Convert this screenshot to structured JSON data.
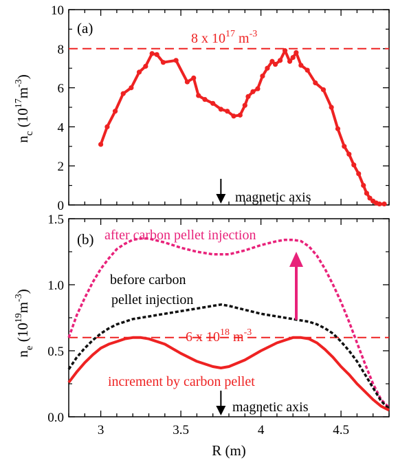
{
  "chart_data": [
    {
      "panel_label": "(a)",
      "type": "line",
      "ylabel": "n",
      "ylabel_sub": "c",
      "ylabel_unit_a": " (10",
      "ylabel_unit_exp1": "17",
      "ylabel_unit_b": "m",
      "ylabel_unit_exp2": "-3",
      "ylabel_unit_c": ")",
      "xlim": [
        2.8,
        4.8
      ],
      "ylim": [
        0,
        10
      ],
      "yticks": [
        "0",
        "2",
        "4",
        "6",
        "8",
        "10"
      ],
      "ref_line": {
        "y": 8,
        "color": "#ee2222",
        "label_main": "8 x 10",
        "label_exp1": "17",
        "label_mid": " m",
        "label_exp2": "-3"
      },
      "annotation": {
        "text": "magnetic axis",
        "x": 3.75
      },
      "series": [
        {
          "color": "#ee2222",
          "marker": "circle",
          "x": [
            3.0,
            3.04,
            3.09,
            3.14,
            3.19,
            3.24,
            3.28,
            3.32,
            3.35,
            3.39,
            3.47,
            3.54,
            3.58,
            3.61,
            3.65,
            3.7,
            3.75,
            3.79,
            3.83,
            3.87,
            3.9,
            3.92,
            3.95,
            3.98,
            4.01,
            4.04,
            4.07,
            4.09,
            4.12,
            4.15,
            4.18,
            4.2,
            4.22,
            4.25,
            4.29,
            4.34,
            4.39,
            4.44,
            4.48,
            4.52,
            4.55,
            4.58,
            4.61,
            4.64,
            4.66,
            4.68,
            4.7,
            4.72,
            4.74,
            4.77
          ],
          "y": [
            3.1,
            4.0,
            4.8,
            5.7,
            6.0,
            6.8,
            7.1,
            7.75,
            7.7,
            7.3,
            7.4,
            6.3,
            6.5,
            5.6,
            5.4,
            5.2,
            4.9,
            4.8,
            4.55,
            4.6,
            5.1,
            5.55,
            5.8,
            5.95,
            6.6,
            7.0,
            7.35,
            7.2,
            7.4,
            7.9,
            7.35,
            7.55,
            7.8,
            7.15,
            6.9,
            6.25,
            5.9,
            5.0,
            3.9,
            3.0,
            2.6,
            2.05,
            1.6,
            1.0,
            0.6,
            0.35,
            0.2,
            0.1,
            0.05,
            0.05
          ]
        }
      ]
    },
    {
      "panel_label": "(b)",
      "type": "line",
      "ylabel": "n",
      "ylabel_sub": "e",
      "ylabel_unit_a": " (10",
      "ylabel_unit_exp1": "19",
      "ylabel_unit_b": "m",
      "ylabel_unit_exp2": "-3",
      "ylabel_unit_c": ")",
      "xlabel": "R (m)",
      "xlim": [
        2.8,
        4.8
      ],
      "ylim": [
        0,
        1.5
      ],
      "xticks": [
        "3",
        "3.5",
        "4",
        "4.5"
      ],
      "yticks": [
        "0.0",
        "0.5",
        "1.0",
        "1.5"
      ],
      "ref_line": {
        "y": 0.6,
        "color": "#ee2222",
        "label_main": "6 x 10",
        "label_exp1": "18",
        "label_mid": " m",
        "label_exp2": "-3"
      },
      "annotation": {
        "text": "magnetic axis",
        "x": 3.75
      },
      "labels": {
        "after": "after carbon pellet injection",
        "before_1": "before carbon",
        "before_2": "pellet injection",
        "increment": "increment by carbon pellet"
      },
      "series": [
        {
          "name": "after carbon pellet injection",
          "color": "#e8227a",
          "style": "dashed",
          "x": [
            2.8,
            2.85,
            2.9,
            2.95,
            3.0,
            3.05,
            3.1,
            3.15,
            3.2,
            3.25,
            3.3,
            3.4,
            3.5,
            3.6,
            3.7,
            3.8,
            3.9,
            4.0,
            4.1,
            4.15,
            4.2,
            4.25,
            4.3,
            4.35,
            4.4,
            4.45,
            4.5,
            4.55,
            4.6,
            4.65,
            4.7,
            4.75,
            4.8
          ],
          "y": [
            0.6,
            0.77,
            0.9,
            1.02,
            1.12,
            1.2,
            1.27,
            1.31,
            1.34,
            1.35,
            1.35,
            1.32,
            1.28,
            1.25,
            1.23,
            1.23,
            1.26,
            1.3,
            1.33,
            1.34,
            1.34,
            1.33,
            1.29,
            1.22,
            1.12,
            1.0,
            0.87,
            0.72,
            0.56,
            0.4,
            0.25,
            0.13,
            0.07
          ]
        },
        {
          "name": "before carbon pellet injection",
          "color": "#111111",
          "style": "dashed",
          "x": [
            2.8,
            2.85,
            2.9,
            2.95,
            3.0,
            3.05,
            3.1,
            3.15,
            3.2,
            3.3,
            3.4,
            3.5,
            3.6,
            3.7,
            3.75,
            3.8,
            3.9,
            4.0,
            4.1,
            4.2,
            4.3,
            4.35,
            4.4,
            4.45,
            4.5,
            4.55,
            4.6,
            4.65,
            4.7,
            4.75,
            4.8
          ],
          "y": [
            0.36,
            0.45,
            0.52,
            0.58,
            0.63,
            0.67,
            0.7,
            0.72,
            0.74,
            0.76,
            0.78,
            0.8,
            0.82,
            0.84,
            0.85,
            0.84,
            0.81,
            0.78,
            0.76,
            0.74,
            0.72,
            0.7,
            0.67,
            0.63,
            0.57,
            0.5,
            0.42,
            0.32,
            0.22,
            0.12,
            0.06
          ]
        },
        {
          "name": "increment by carbon pellet",
          "color": "#ee2222",
          "style": "solid",
          "x": [
            2.8,
            2.85,
            2.9,
            2.95,
            3.0,
            3.05,
            3.1,
            3.15,
            3.2,
            3.25,
            3.3,
            3.4,
            3.5,
            3.6,
            3.7,
            3.75,
            3.8,
            3.9,
            4.0,
            4.1,
            4.15,
            4.2,
            4.25,
            4.3,
            4.35,
            4.4,
            4.45,
            4.5,
            4.55,
            4.6,
            4.65,
            4.7,
            4.75,
            4.8
          ],
          "y": [
            0.26,
            0.34,
            0.41,
            0.47,
            0.52,
            0.55,
            0.57,
            0.59,
            0.6,
            0.6,
            0.59,
            0.55,
            0.48,
            0.42,
            0.38,
            0.37,
            0.38,
            0.43,
            0.5,
            0.56,
            0.58,
            0.6,
            0.6,
            0.59,
            0.56,
            0.51,
            0.45,
            0.38,
            0.32,
            0.25,
            0.19,
            0.13,
            0.08,
            0.05
          ]
        }
      ]
    }
  ]
}
